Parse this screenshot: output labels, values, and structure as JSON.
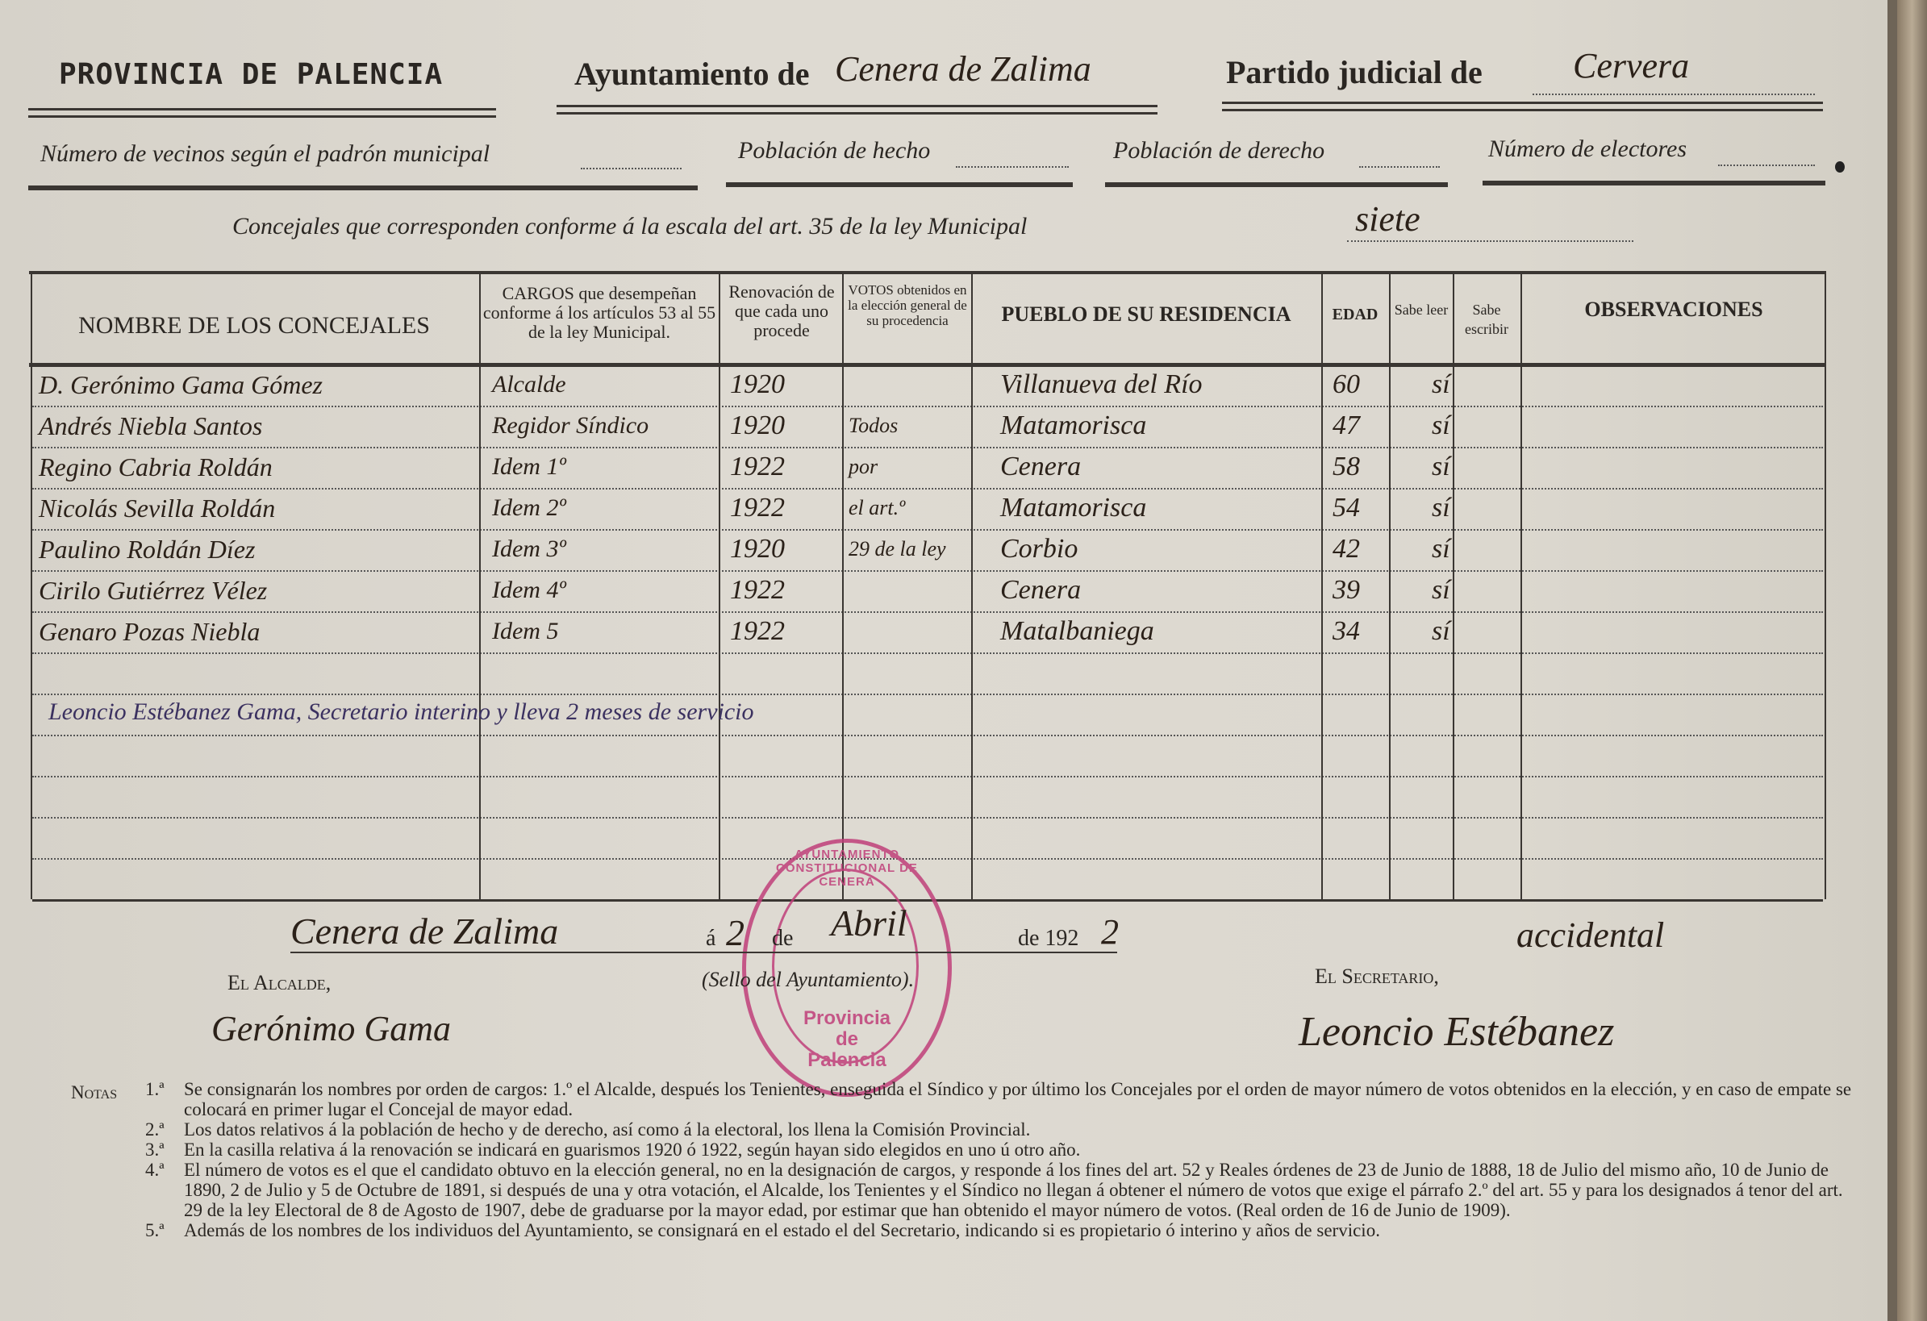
{
  "header": {
    "provincia": "PROVINCIA DE PALENCIA",
    "ayuntamiento_label": "Ayuntamiento de",
    "ayuntamiento_value": "Cenera de Zalima",
    "partido_label": "Partido judicial de",
    "partido_value": "Cervera",
    "vecinos_label": "Número de vecinos según el padrón municipal",
    "poblacion_hecho_label": "Población de hecho",
    "poblacion_derecho_label": "Población de derecho",
    "electores_label": "Número de electores",
    "concejales_label": "Concejales que corresponden conforme á la escala del art. 35 de la ley Municipal",
    "concejales_value": "siete"
  },
  "table": {
    "columns": [
      "NOMBRE DE LOS CONCEJALES",
      "CARGOS que desempeñan conforme á los artículos 53 al 55 de la ley Municipal.",
      "Renovación de que cada uno procede",
      "VOTOS obtenidos en la elección general de su procedencia",
      "PUEBLO DE SU RESIDENCIA",
      "EDAD",
      "Sabe leer",
      "Sabe escribir",
      "OBSERVACIONES"
    ],
    "rows": [
      {
        "nombre": "D. Gerónimo Gama Gómez",
        "cargo": "Alcalde",
        "renovacion": "1920",
        "votos": "",
        "pueblo": "Villanueva del Río",
        "edad": "60",
        "sabe": "sí"
      },
      {
        "nombre": "Andrés Niebla Santos",
        "cargo": "Regidor Síndico",
        "renovacion": "1920",
        "votos": "Todos",
        "pueblo": "Matamorisca",
        "edad": "47",
        "sabe": "sí"
      },
      {
        "nombre": "Regino Cabria Roldán",
        "cargo": "Idem 1º",
        "renovacion": "1922",
        "votos": "por",
        "pueblo": "Cenera",
        "edad": "58",
        "sabe": "sí"
      },
      {
        "nombre": "Nicolás Sevilla Roldán",
        "cargo": "Idem 2º",
        "renovacion": "1922",
        "votos": "el art.º",
        "pueblo": "Matamorisca",
        "edad": "54",
        "sabe": "sí"
      },
      {
        "nombre": "Paulino Roldán Díez",
        "cargo": "Idem 3º",
        "renovacion": "1920",
        "votos": "29 de la ley",
        "pueblo": "Corbio",
        "edad": "42",
        "sabe": "sí"
      },
      {
        "nombre": "Cirilo Gutiérrez Vélez",
        "cargo": "Idem 4º",
        "renovacion": "1922",
        "votos": "",
        "pueblo": "Cenera",
        "edad": "39",
        "sabe": "sí"
      },
      {
        "nombre": "Genaro Pozas Niebla",
        "cargo": "Idem 5",
        "renovacion": "1922",
        "votos": "",
        "pueblo": "Matalbaniega",
        "edad": "34",
        "sabe": "sí"
      }
    ],
    "secretario_row": "Leoncio Estébanez Gama, Secretario interino y lleva 2 meses de servicio"
  },
  "footer": {
    "place_date_place": "Cenera de Zalima",
    "a": "á",
    "day": "2",
    "de1": "de",
    "month": "Abril",
    "de2": "de 192",
    "year_digit": "2",
    "sello": "(Sello del Ayuntamiento).",
    "alcalde_label": "El Alcalde,",
    "alcalde_signature": "Gerónimo Gama",
    "secretario_label": "El Secretario,",
    "secretario_note": "accidental",
    "secretario_signature": "Leoncio Estébanez"
  },
  "stamp": {
    "ring_text": "AYUNTAMIENTO CONSTITUCIONAL DE CENERA",
    "center_1": "Provincia",
    "center_2": "de",
    "center_3": "Palencia",
    "color": "#c0407a"
  },
  "notes": {
    "label": "Notas",
    "items": [
      {
        "num": "1.ª",
        "text": "Se consignarán los nombres por orden de cargos: 1.º el Alcalde, después los Tenientes, enseguida el Síndico y por último los Concejales por el orden de mayor número de votos obtenidos en la elección, y en caso de empate se colocará en primer lugar el Concejal de mayor edad."
      },
      {
        "num": "2.ª",
        "text": "Los datos relativos á la población de hecho y de derecho, así como á la electoral, los llena la Comisión Provincial."
      },
      {
        "num": "3.ª",
        "text": "En la casilla relativa á la renovación se indicará en guarismos 1920 ó 1922, según hayan sido elegidos en uno ú otro año."
      },
      {
        "num": "4.ª",
        "text": "El número de votos es el que el candidato obtuvo en la elección general, no en la designación de cargos, y responde á los fines del art. 52 y Reales órdenes de 23 de Junio de 1888, 18 de Julio del mismo año, 10 de Junio de 1890, 2 de Julio y 5 de Octubre de 1891, si después de una y otra votación, el Alcalde, los Tenientes y el Síndico no llegan á obtener el número de votos que exige el párrafo 2.º del art. 55 y para los designados á tenor del art. 29 de la ley Electoral de 8 de Agosto de 1907, debe de graduarse por la mayor edad, por estimar que han obtenido el mayor número de votos. (Real orden de 16 de Junio de 1909)."
      },
      {
        "num": "5.ª",
        "text": "Además de los nombres de los individuos del Ayuntamiento, se consignará en el estado el del Secretario, indicando si es propietario ó interino y años de servicio."
      }
    ]
  }
}
